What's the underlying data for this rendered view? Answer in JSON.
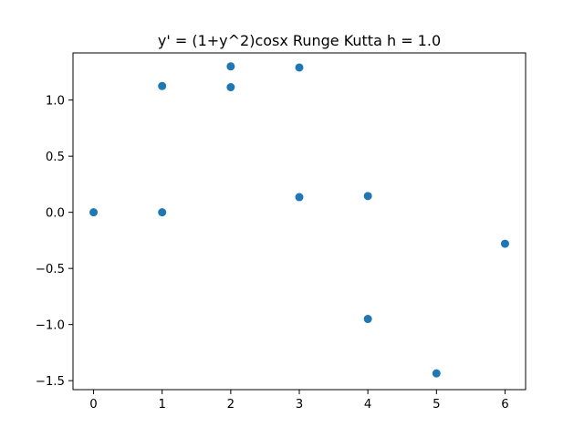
{
  "chart_data": {
    "type": "scatter",
    "title": "y' = (1+y^2)cosx Runge Kutta h = 1.0",
    "xlabel": "",
    "ylabel": "",
    "xlim": [
      -0.3,
      6.3
    ],
    "ylim": [
      -1.58,
      1.42
    ],
    "xticks": [
      0,
      1,
      2,
      3,
      4,
      5,
      6
    ],
    "xtick_labels": [
      "0",
      "1",
      "2",
      "3",
      "4",
      "5",
      "6"
    ],
    "yticks": [
      -1.5,
      -1.0,
      -0.5,
      0.0,
      0.5,
      1.0
    ],
    "ytick_labels": [
      "−1.5",
      "−1.0",
      "−0.5",
      "0.0",
      "0.5",
      "1.0"
    ],
    "grid": false,
    "marker_color": "#1f77b4",
    "points": [
      {
        "x": 0,
        "y": 0.0
      },
      {
        "x": 1,
        "y": 1.125
      },
      {
        "x": 1,
        "y": 0.0
      },
      {
        "x": 2,
        "y": 1.3
      },
      {
        "x": 2,
        "y": 1.115
      },
      {
        "x": 3,
        "y": 1.29
      },
      {
        "x": 3,
        "y": 0.135
      },
      {
        "x": 4,
        "y": 0.145
      },
      {
        "x": 4,
        "y": -0.95
      },
      {
        "x": 5,
        "y": -1.435
      },
      {
        "x": 6,
        "y": -0.28
      }
    ]
  }
}
